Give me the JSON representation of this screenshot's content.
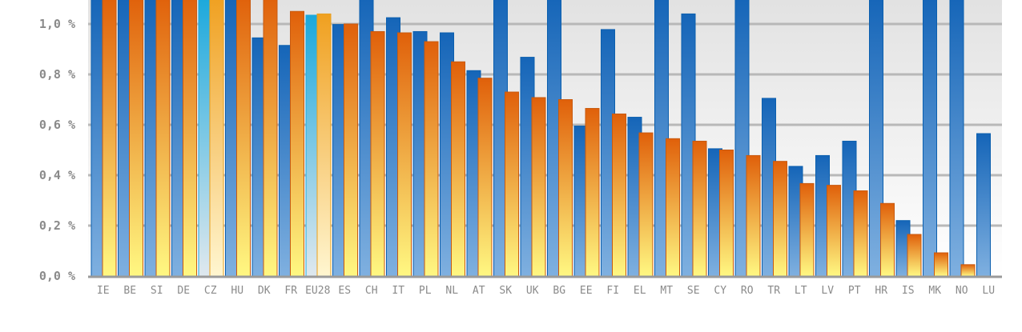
{
  "chart_data": {
    "type": "bar",
    "ylim": [
      0,
      1.1
    ],
    "grid": true,
    "yticks": [
      {
        "value": 0.0,
        "label": "0,0 %"
      },
      {
        "value": 0.2,
        "label": "0,2 %"
      },
      {
        "value": 0.4,
        "label": "0,4 %"
      },
      {
        "value": 0.6,
        "label": "0,6 %"
      },
      {
        "value": 0.8,
        "label": "0,8 %"
      },
      {
        "value": 1.0,
        "label": "1,0 %"
      }
    ],
    "categories": [
      "IE",
      "BE",
      "SI",
      "DE",
      "CZ",
      "HU",
      "DK",
      "FR",
      "EU28",
      "ES",
      "CH",
      "IT",
      "PL",
      "NL",
      "AT",
      "SK",
      "UK",
      "BG",
      "EE",
      "FI",
      "EL",
      "MT",
      "SE",
      "CY",
      "RO",
      "TR",
      "LT",
      "LV",
      "PT",
      "HR",
      "IS",
      "MK",
      "NO",
      "LU"
    ],
    "highlight": [
      "CZ",
      "EU28"
    ],
    "series": [
      {
        "values": [
          1.2,
          1.2,
          1.2,
          1.2,
          1.2,
          1.2,
          0.945,
          0.915,
          1.035,
          0.998,
          1.2,
          1.025,
          0.97,
          0.965,
          0.815,
          1.2,
          0.868,
          1.2,
          0.595,
          0.978,
          0.63,
          1.2,
          1.04,
          0.505,
          1.2,
          0.705,
          0.435,
          0.478,
          0.535,
          1.2,
          0.22,
          1.2,
          1.2,
          0.565
        ]
      },
      {
        "values": [
          1.2,
          1.2,
          1.2,
          1.2,
          1.2,
          1.2,
          1.2,
          1.05,
          1.04,
          1.0,
          0.97,
          0.965,
          0.93,
          0.85,
          0.785,
          0.73,
          0.708,
          0.7,
          0.665,
          0.643,
          0.568,
          0.545,
          0.535,
          0.5,
          0.478,
          0.455,
          0.367,
          0.36,
          0.338,
          0.288,
          0.165,
          0.092,
          0.045,
          null
        ]
      }
    ],
    "colors": {
      "blue_top": "#1565b8",
      "blue_bottom": "#7fb0e0",
      "orange_top": "#e0600a",
      "orange_bottom": "#fff882",
      "cyan_top": "#1aa8dc",
      "cyan_bottom": "#dfe8ee",
      "gold_top": "#f0a020",
      "gold_bottom": "#fff6d0",
      "grid": "#b8b8b8",
      "axis": "#9a9a9a"
    }
  }
}
